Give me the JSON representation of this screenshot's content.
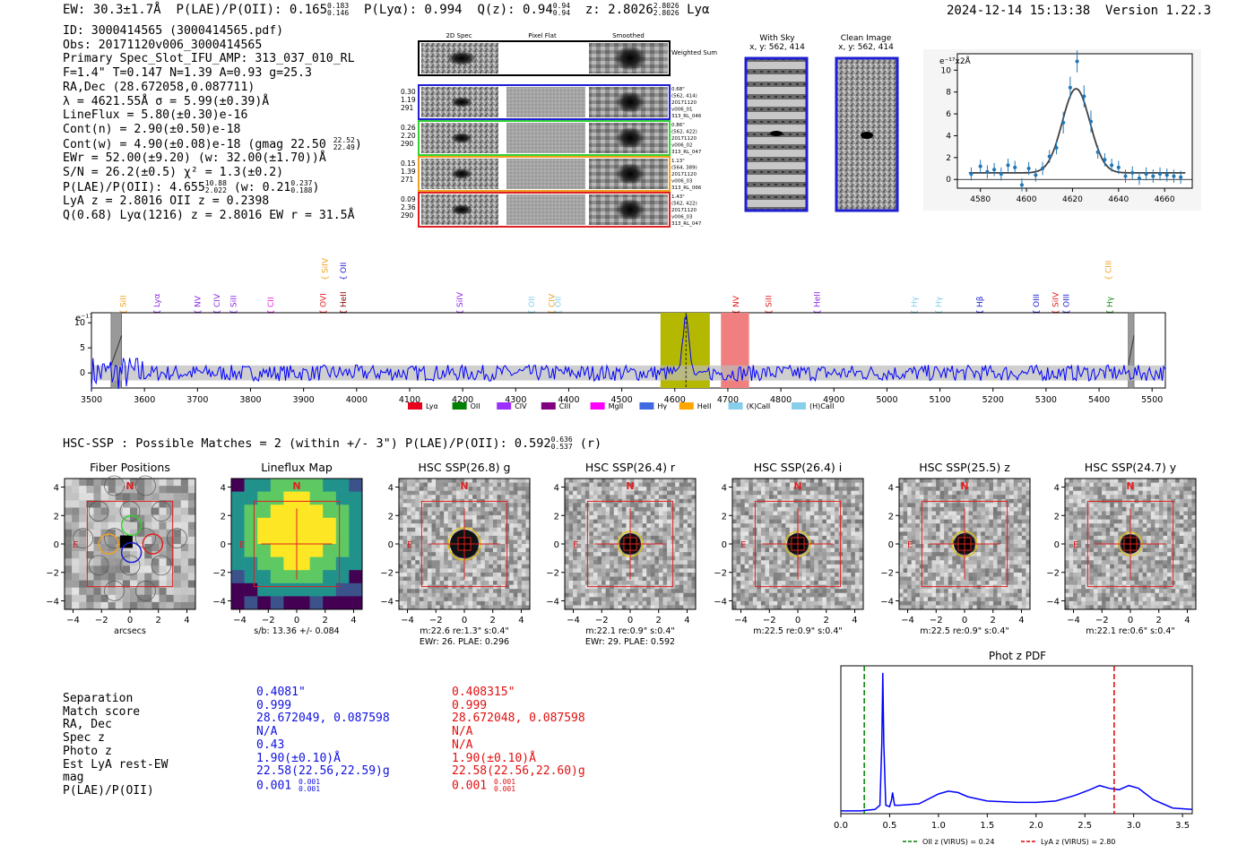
{
  "header": {
    "ew": "EW: 30.3±1.7Å",
    "plae_label": "P(LAE)/P(OII):",
    "plae_value": "0.165",
    "plae_hi": "0.183",
    "plae_lo": "0.146",
    "plya": "P(Lyα): 0.994",
    "qz_label": "Q(z):",
    "qz_value": "0.94",
    "qz_hi": "0.94",
    "qz_lo": "0.94",
    "z_label": "z:",
    "z_value": "2.8026",
    "z_hi": "2.8026",
    "z_lo": "2.8026",
    "z_line": "Lyα",
    "datetime": "2024-12-14 15:13:38",
    "version": "Version 1.22.3"
  },
  "info": {
    "id": "ID: 3000414565 (3000414565.pdf)",
    "obs": "Obs: 20171120v006_3000414565",
    "primary": "Primary Spec_Slot_IFU_AMP: 313_037_010_RL",
    "params": "F=1.4\"  T=0.147  N=1.39  A=0.93  g=25.3",
    "radec": "RA,Dec (28.672058,0.087711)",
    "lambda": "λ = 4621.55Å  σ = 5.99(±0.39)Å",
    "lineflux": "LineFlux = 5.80(±0.30)e-16",
    "contn": "Cont(n) = 2.90(±0.50)e-18",
    "contw": "Cont(w) = 4.90(±0.08)e-18 (gmag 22.50",
    "contw_hi": "22.52",
    "contw_lo": "22.49",
    "ewr": "EWr = 52.00(±9.20) (w: 32.00(±1.70))Å",
    "sn": "S/N = 26.2(±0.5)  χ² = 1.3(±0.2)",
    "plae": "P(LAE)/P(OII): 4.655",
    "plae_hi": "10.88",
    "plae_lo": "2.022",
    "plae_w": "(w: 0.21",
    "plae_w_hi": "0.237",
    "plae_w_lo": "0.188",
    "lyaz": "LyA z = 2.8016  OII z = 0.2398",
    "q": "Q(0.68) Lyα(1216) z = 2.8016  EW r = 31.5Å"
  },
  "cutouts": {
    "col_headers": [
      "2D Spec",
      "Pixel Flat",
      "Smoothed"
    ],
    "sum_label": "Weighted Sum",
    "rows": [
      {
        "left": [
          "0.30",
          "1.19",
          "291"
        ],
        "right": [
          "0.68\"",
          "(562, 414)",
          "20171120",
          "v006_01",
          "313_RL_046"
        ],
        "color": "#1e1ed2"
      },
      {
        "left": [
          "0.26",
          "2.20",
          "290"
        ],
        "right": [
          "0.86\"",
          "(562, 422)",
          "20171120",
          "v006_02",
          "313_RL_047"
        ],
        "color": "#32d232"
      },
      {
        "left": [
          "0.15",
          "1.39",
          "271"
        ],
        "right": [
          "1.13\"",
          "(564, 389)",
          "20171120",
          "v006_03",
          "313_RL_066"
        ],
        "color": "#f0a020"
      },
      {
        "left": [
          "0.09",
          "2.36",
          "290"
        ],
        "right": [
          "1.43\"",
          "(562, 422)",
          "20171120",
          "v006_03",
          "313_RL_047"
        ],
        "color": "#e02020"
      }
    ],
    "sky_title": "With Sky",
    "sky_sub": "x, y: 562, 414",
    "clean_title": "Clean Image",
    "clean_sub": "x, y: 562, 414"
  },
  "zoom_plot": {
    "unit": "e⁻¹⁷x2Å",
    "xticks": [
      "4580",
      "4600",
      "4620",
      "4640",
      "4660"
    ],
    "yticks": [
      "0",
      "2",
      "4",
      "6",
      "8",
      "10"
    ]
  },
  "full_spectrum": {
    "unit": "e⁻¹⁷x2Å",
    "xticks": [
      "3500",
      "3600",
      "3700",
      "3800",
      "3900",
      "4000",
      "4100",
      "4200",
      "4300",
      "4400",
      "4500",
      "4600",
      "4700",
      "4800",
      "4900",
      "5000",
      "5100",
      "5200",
      "5300",
      "5400",
      "5500"
    ],
    "yticks": [
      "0",
      "5",
      "10"
    ],
    "line_labels": [
      {
        "name": "SiII",
        "wave": 3560,
        "color": "#f0a020",
        "row": "low"
      },
      {
        "name": "Lyα",
        "wave": 3623,
        "color": "#8a2be2",
        "row": "low"
      },
      {
        "name": "NV",
        "wave": 3700,
        "color": "#8a2be2",
        "row": "low"
      },
      {
        "name": "CIV",
        "wave": 3737,
        "color": "#8a2be2",
        "row": "low"
      },
      {
        "name": "SiII",
        "wave": 3768,
        "color": "#8a2be2",
        "row": "low"
      },
      {
        "name": "CII",
        "wave": 3838,
        "color": "#e020e0",
        "row": "low"
      },
      {
        "name": "OVI",
        "wave": 3937,
        "color": "#e02020",
        "row": "low"
      },
      {
        "name": "SiIV",
        "wave": 3940,
        "color": "#f0a020",
        "row": "high"
      },
      {
        "name": "HeII",
        "wave": 3975,
        "color": "#8b0000",
        "row": "low"
      },
      {
        "name": "OII",
        "wave": 3975,
        "color": "#1e1ed2",
        "row": "high"
      },
      {
        "name": "SiIV",
        "wave": 4195,
        "color": "#8a2be2",
        "row": "low"
      },
      {
        "name": "OII",
        "wave": 4330,
        "color": "#87ceeb",
        "row": "low"
      },
      {
        "name": "CIV",
        "wave": 4368,
        "color": "#f0a020",
        "row": "low"
      },
      {
        "name": "OII",
        "wave": 4380,
        "color": "#87ceeb",
        "row": "low"
      },
      {
        "name": "NV",
        "wave": 4715,
        "color": "#e02020",
        "row": "low"
      },
      {
        "name": "SiII",
        "wave": 4777,
        "color": "#e02020",
        "row": "low"
      },
      {
        "name": "HeII",
        "wave": 4868,
        "color": "#8a2be2",
        "row": "low"
      },
      {
        "name": "Hγ",
        "wave": 5052,
        "color": "#87ceeb",
        "row": "low"
      },
      {
        "name": "Hγ",
        "wave": 5097,
        "color": "#87ceeb",
        "row": "low"
      },
      {
        "name": "Hβ",
        "wave": 5175,
        "color": "#1e1ed2",
        "row": "low"
      },
      {
        "name": "OIII",
        "wave": 5282,
        "color": "#1e1ed2",
        "row": "low"
      },
      {
        "name": "SiIV",
        "wave": 5318,
        "color": "#e02020",
        "row": "low"
      },
      {
        "name": "OIII",
        "wave": 5338,
        "color": "#1e1ed2",
        "row": "low"
      },
      {
        "name": "CIII",
        "wave": 5418,
        "color": "#f0a020",
        "row": "high"
      },
      {
        "name": "Hγ",
        "wave": 5420,
        "color": "#228b22",
        "row": "low"
      }
    ],
    "legend": [
      {
        "name": "Lyα",
        "color": "#e8001c"
      },
      {
        "name": "OII",
        "color": "#008000"
      },
      {
        "name": "CIV",
        "color": "#9b30ff"
      },
      {
        "name": "CIII",
        "color": "#800080"
      },
      {
        "name": "MgII",
        "color": "#ff00ff"
      },
      {
        "name": "Hγ",
        "color": "#4169e1"
      },
      {
        "name": "HeII",
        "color": "#ffa500"
      },
      {
        "name": "(K)CaII",
        "color": "#87ceeb"
      },
      {
        "name": "(H)CaII",
        "color": "#87ceeb"
      }
    ]
  },
  "hsc": {
    "title_prefix": "HSC-SSP : Possible Matches = 2 (within +/- 3\")  P(LAE)/P(OII): 0.592",
    "title_hi": "0.636",
    "title_lo": "0.537",
    "title_suffix": "(r)",
    "panels": [
      {
        "title": "Fiber Positions",
        "caption1": "arcsecs",
        "caption2": ""
      },
      {
        "title": "Lineflux Map",
        "caption1": "s/b: 13.36 +/- 0.084",
        "caption2": ""
      },
      {
        "title": "HSC SSP(26.8) g",
        "caption1": "m:22.6  re:1.3\"  s:0.4\"",
        "caption2": "EWr: 26. PLAE: 0.296"
      },
      {
        "title": "HSC SSP(26.4) r",
        "caption1": "m:22.1  re:0.9\"  s:0.4\"",
        "caption2": "EWr: 29. PLAE: 0.592"
      },
      {
        "title": "HSC SSP(26.4) i",
        "caption1": "m:22.5  re:0.9\"  s:0.4\"",
        "caption2": ""
      },
      {
        "title": "HSC SSP(25.5) z",
        "caption1": "m:22.5  re:0.9\"  s:0.4\"",
        "caption2": ""
      },
      {
        "title": "HSC SSP(24.7) y",
        "caption1": "m:22.1  re:0.6\"  s:0.4\"",
        "caption2": ""
      }
    ],
    "axis_ticks": [
      "-4",
      "-2",
      "0",
      "2",
      "4"
    ],
    "north": "N",
    "east": "E"
  },
  "match_table": {
    "labels": [
      "Separation",
      "Match score",
      "RA, Dec",
      "Spec z",
      "Photo z",
      "Est LyA rest-EW",
      "mag",
      "P(LAE)/P(OII)"
    ],
    "blue": [
      "0.4081\"",
      "0.999",
      "28.672049, 0.087598",
      "N/A",
      "0.43",
      "1.90(±0.10)Å",
      "22.58(22.56,22.59)g",
      "0.001"
    ],
    "blue_hi": "0.001",
    "blue_lo": "0.001",
    "red": [
      "0.408315\"",
      "0.999",
      "28.672048, 0.087598",
      "N/A",
      "N/A",
      "1.90(±0.10)Å",
      "22.58(22.56,22.60)g",
      "0.001"
    ],
    "red_hi": "0.001",
    "red_lo": "0.001"
  },
  "chart_data": [
    {
      "type": "scatter",
      "title": "",
      "ylabel": "e-17x2Å",
      "xlim": [
        4570,
        4672
      ],
      "ylim": [
        -0.8,
        11.5
      ],
      "x": [
        4576,
        4580,
        4583,
        4586,
        4589,
        4592,
        4595,
        4598,
        4601,
        4604,
        4607,
        4610,
        4613,
        4616,
        4619,
        4622,
        4625,
        4628,
        4631,
        4634,
        4637,
        4640,
        4643,
        4646,
        4649,
        4652,
        4655,
        4658,
        4661,
        4664,
        4667
      ],
      "values": [
        0.5,
        1.2,
        0.7,
        0.9,
        0.5,
        1.3,
        1.1,
        -0.5,
        1.0,
        0.4,
        1.0,
        2.1,
        2.9,
        5.2,
        8.4,
        10.8,
        7.6,
        5.3,
        2.5,
        1.8,
        1.3,
        1.1,
        0.3,
        0.6,
        0.1,
        0.5,
        0.3,
        0.5,
        0.4,
        0.3,
        0.2
      ],
      "fit": {
        "model": "gaussian",
        "center": 4621.55,
        "sigma": 5.99,
        "amplitude": 7.7,
        "baseline": 0.6
      },
      "xticks": [
        4580,
        4600,
        4620,
        4640,
        4660
      ],
      "yticks": [
        0,
        2,
        4,
        6,
        8,
        10
      ]
    },
    {
      "type": "line",
      "title": "",
      "xlabel": "",
      "ylabel": "e-17x2Å",
      "xlim": [
        3500,
        5525
      ],
      "ylim": [
        -3,
        12
      ],
      "series": [
        {
          "name": "flux",
          "color": "#0000ff",
          "noise_sigma": 0.8,
          "peak": {
            "x": 4621,
            "y": 11
          }
        }
      ],
      "highlight_bands": [
        {
          "from": 4573,
          "to": 4666,
          "color": "#b5b800"
        },
        {
          "from": 4687,
          "to": 4740,
          "color": "#f08080"
        }
      ],
      "gap_bands": [
        [
          3537,
          3557
        ],
        [
          5455,
          5466
        ]
      ],
      "marker_line": 4621
    },
    {
      "type": "line",
      "title": "Phot z PDF",
      "xlim": [
        0,
        3.6
      ],
      "ylim": [
        0,
        1.05
      ],
      "xticks": [
        0.0,
        0.5,
        1.0,
        1.5,
        2.0,
        2.5,
        3.0,
        3.5
      ],
      "series": [
        {
          "name": "PDF",
          "color": "#0000ff",
          "x": [
            0.0,
            0.2,
            0.35,
            0.4,
            0.42,
            0.43,
            0.44,
            0.46,
            0.5,
            0.52,
            0.53,
            0.55,
            0.6,
            0.8,
            1.0,
            1.1,
            1.2,
            1.3,
            1.5,
            1.8,
            2.0,
            2.2,
            2.4,
            2.55,
            2.65,
            2.75,
            2.85,
            2.95,
            3.05,
            3.2,
            3.4,
            3.6
          ],
          "values": [
            0.02,
            0.02,
            0.03,
            0.06,
            0.5,
            1.0,
            0.5,
            0.06,
            0.05,
            0.1,
            0.15,
            0.06,
            0.06,
            0.07,
            0.14,
            0.16,
            0.15,
            0.12,
            0.09,
            0.08,
            0.08,
            0.09,
            0.13,
            0.17,
            0.2,
            0.18,
            0.17,
            0.2,
            0.18,
            0.1,
            0.04,
            0.03
          ]
        }
      ],
      "vlines": [
        {
          "x": 0.24,
          "color": "#008000",
          "label": "OII z (VIRUS) = 0.24"
        },
        {
          "x": 2.8,
          "color": "#e00000",
          "label": "LyA z (VIRUS) = 2.80"
        }
      ]
    }
  ]
}
